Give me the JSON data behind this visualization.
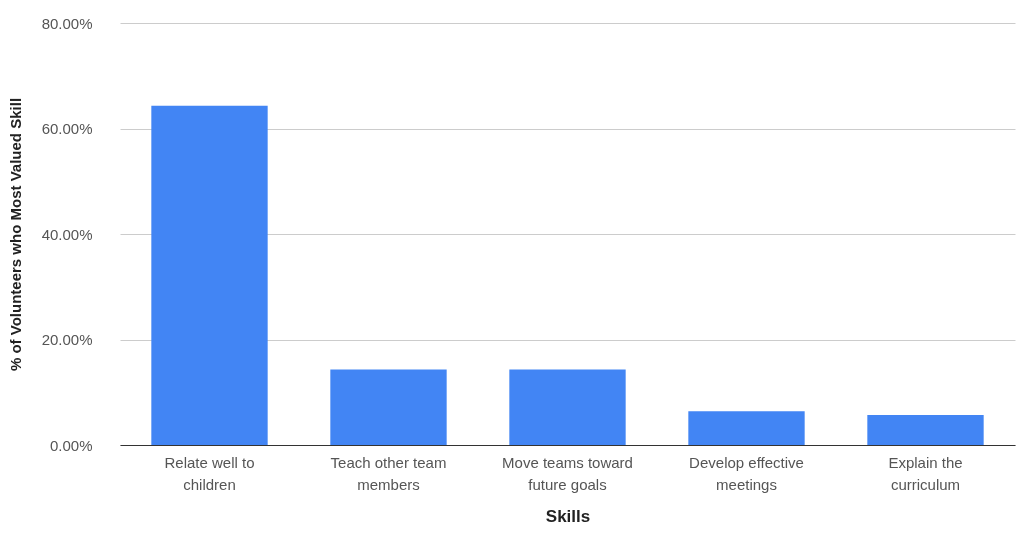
{
  "chart_data": {
    "type": "bar",
    "xlabel": "Skills",
    "ylabel": "% of Volunteers who Most Valued Skill",
    "categories": [
      "Relate well to children",
      "Teach other team members",
      "Move teams toward future goals",
      "Develop effective meetings",
      "Explain the curriculum"
    ],
    "values": [
      64.3,
      14.3,
      14.3,
      6.4,
      5.7
    ],
    "color": "#4285f4",
    "ylim": [
      0,
      80
    ],
    "yticks": [
      {
        "value": 0,
        "label": "0.00%"
      },
      {
        "value": 20,
        "label": "20.00%"
      },
      {
        "value": 40,
        "label": "40.00%"
      },
      {
        "value": 60,
        "label": "60.00%"
      },
      {
        "value": 80,
        "label": "80.00%"
      }
    ],
    "grid": "y"
  }
}
